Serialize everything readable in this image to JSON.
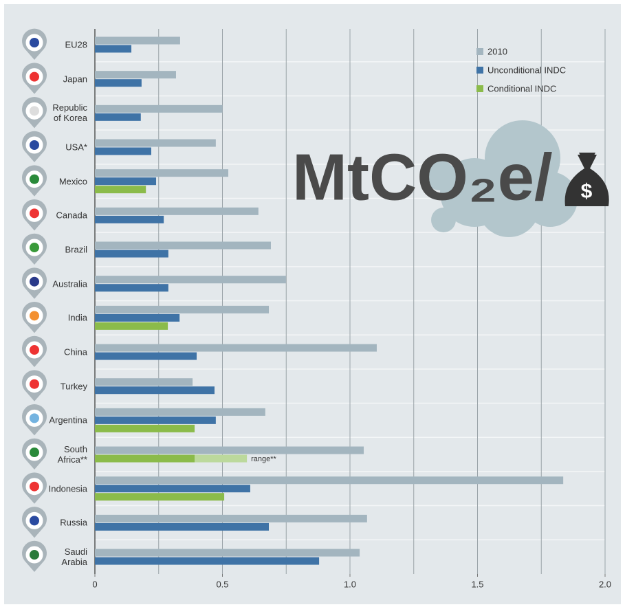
{
  "chart_data": {
    "type": "hbar",
    "categories": [
      "EU28",
      "Japan",
      "Republic\nof Korea",
      "USA*",
      "Mexico",
      "Canada",
      "Brazil",
      "Australia",
      "India",
      "China",
      "Turkey",
      "Argentina",
      "South\nAfrica**",
      "Indonesia",
      "Russia",
      "Saudi\nArabia"
    ],
    "series": [
      {
        "name": "2010",
        "color": "#a3b5bf",
        "values": [
          0.334,
          0.318,
          0.5,
          0.474,
          0.523,
          0.641,
          0.69,
          0.749,
          0.682,
          1.105,
          0.383,
          0.668,
          1.054,
          1.836,
          1.067,
          1.038
        ]
      },
      {
        "name": "Unconditional INDC",
        "color": "#3f73a6",
        "values": [
          0.143,
          0.183,
          0.18,
          0.221,
          0.24,
          0.27,
          0.288,
          0.288,
          0.332,
          0.399,
          0.469,
          0.474,
          null,
          0.609,
          0.682,
          0.879
        ]
      },
      {
        "name": "Conditional INDC",
        "color": "#8bbb4a",
        "values": [
          null,
          null,
          null,
          null,
          0.2,
          null,
          null,
          null,
          0.286,
          null,
          null,
          0.391,
          0.391,
          0.507,
          null,
          null
        ]
      }
    ],
    "range": {
      "label": "range**",
      "category": "South\nAfrica**",
      "from": 0.391,
      "to": 0.596,
      "color": "#bcd99c"
    },
    "xlim": [
      0,
      2
    ],
    "xticks": [
      0,
      0.5,
      {
        "value": 1,
        "label": "1.0"
      },
      1.5,
      {
        "value": 2,
        "label": "2.0"
      }
    ],
    "xgrid": [
      0.25,
      0.5,
      0.75,
      1,
      1.25,
      1.5,
      1.75,
      2
    ],
    "legend": "top-right",
    "unit_graphic": {
      "text": "MtCO₂e/",
      "icon_text": "$"
    }
  }
}
